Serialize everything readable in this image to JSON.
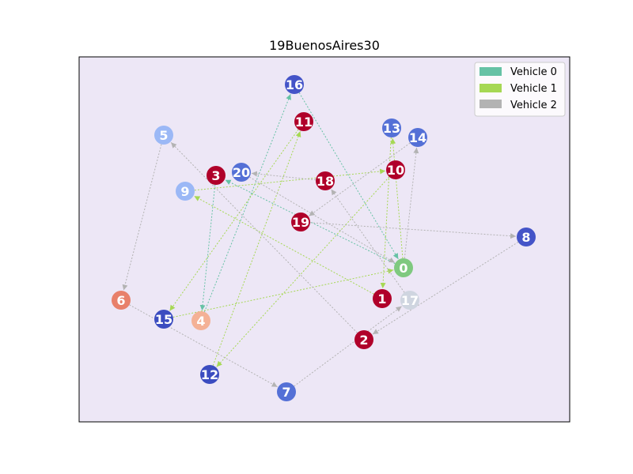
{
  "title": "19BuenosAires30",
  "legend": {
    "placement": "top-right",
    "items": [
      {
        "label": "Vehicle 0",
        "color": "#66c2a5"
      },
      {
        "label": "Vehicle 1",
        "color": "#a6d854"
      },
      {
        "label": "Vehicle 2",
        "color": "#b3b3b3"
      }
    ]
  },
  "colors": {
    "plot_background": "#ede7f6",
    "arrow_vehicle_0": "#66c2a5",
    "arrow_vehicle_1": "#a6d854",
    "arrow_vehicle_2": "#b3b3b3"
  },
  "chart_data": {
    "type": "network",
    "title": "19BuenosAires30",
    "nodes": [
      {
        "id": "0",
        "color": "#7fc97f"
      },
      {
        "id": "1",
        "color": "#b0002a"
      },
      {
        "id": "2",
        "color": "#b0002a"
      },
      {
        "id": "3",
        "color": "#b0002a"
      },
      {
        "id": "4",
        "color": "#f4b196"
      },
      {
        "id": "5",
        "color": "#9bb8f6"
      },
      {
        "id": "6",
        "color": "#e8806a"
      },
      {
        "id": "7",
        "color": "#5470d6"
      },
      {
        "id": "8",
        "color": "#4454c8"
      },
      {
        "id": "9",
        "color": "#9bb8f6"
      },
      {
        "id": "10",
        "color": "#b0002a"
      },
      {
        "id": "11",
        "color": "#b0002a"
      },
      {
        "id": "12",
        "color": "#3b4cc0"
      },
      {
        "id": "13",
        "color": "#5470d6"
      },
      {
        "id": "14",
        "color": "#5470d6"
      },
      {
        "id": "15",
        "color": "#3b4cc0"
      },
      {
        "id": "16",
        "color": "#4454c8"
      },
      {
        "id": "17",
        "color": "#cfd5e0"
      },
      {
        "id": "18",
        "color": "#b0002a"
      },
      {
        "id": "19",
        "color": "#b0002a"
      },
      {
        "id": "20",
        "color": "#5470d6"
      }
    ],
    "edges": [
      {
        "from": "0",
        "to": "3",
        "vehicle": 0
      },
      {
        "from": "3",
        "to": "4",
        "vehicle": 0
      },
      {
        "from": "4",
        "to": "16",
        "vehicle": 0
      },
      {
        "from": "16",
        "to": "0",
        "vehicle": 0
      },
      {
        "from": "0",
        "to": "13",
        "vehicle": 1
      },
      {
        "from": "13",
        "to": "1",
        "vehicle": 1
      },
      {
        "from": "1",
        "to": "9",
        "vehicle": 1
      },
      {
        "from": "9",
        "to": "10",
        "vehicle": 1
      },
      {
        "from": "10",
        "to": "12",
        "vehicle": 1
      },
      {
        "from": "12",
        "to": "11",
        "vehicle": 1
      },
      {
        "from": "11",
        "to": "15",
        "vehicle": 1
      },
      {
        "from": "15",
        "to": "0",
        "vehicle": 1
      },
      {
        "from": "0",
        "to": "14",
        "vehicle": 2
      },
      {
        "from": "14",
        "to": "19",
        "vehicle": 2
      },
      {
        "from": "19",
        "to": "8",
        "vehicle": 2
      },
      {
        "from": "8",
        "to": "2",
        "vehicle": 2
      },
      {
        "from": "2",
        "to": "5",
        "vehicle": 2
      },
      {
        "from": "5",
        "to": "6",
        "vehicle": 2
      },
      {
        "from": "6",
        "to": "7",
        "vehicle": 2
      },
      {
        "from": "7",
        "to": "17",
        "vehicle": 2
      },
      {
        "from": "17",
        "to": "18",
        "vehicle": 2
      },
      {
        "from": "18",
        "to": "20",
        "vehicle": 2
      },
      {
        "from": "20",
        "to": "0",
        "vehicle": 2
      }
    ]
  }
}
